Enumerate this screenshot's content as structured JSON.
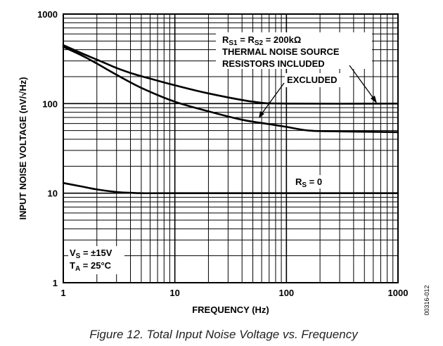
{
  "chart_data": {
    "type": "line",
    "caption": "Figure 12. Total Input Noise Voltage vs. Frequency",
    "figure_id": "00316-012",
    "xlabel": "FREQUENCY (Hz)",
    "ylabel": "INPUT NOISE VOLTAGE (nV/√Hz)",
    "x_scale": "log",
    "y_scale": "log",
    "xlim": [
      1,
      1000
    ],
    "ylim": [
      1,
      1000
    ],
    "grid": true,
    "x_ticks": [
      "1",
      "10",
      "100",
      "1000"
    ],
    "y_ticks": [
      "1",
      "10",
      "100",
      "1000"
    ],
    "series": [
      {
        "label": "THERMAL NOISE SOURCE RESISTORS INCLUDED",
        "x": [
          1,
          1.5,
          2,
          3,
          4,
          6,
          10,
          20,
          50,
          100,
          1000
        ],
        "y": [
          450,
          360,
          310,
          250,
          220,
          190,
          160,
          130,
          105,
          100,
          100
        ]
      },
      {
        "label": "EXCLUDED",
        "x": [
          1,
          1.5,
          2,
          3,
          5,
          10,
          20,
          40,
          70,
          100,
          160,
          300,
          1000
        ],
        "y": [
          430,
          340,
          280,
          210,
          150,
          105,
          82,
          66,
          59,
          55,
          50,
          49,
          48
        ]
      },
      {
        "label": "RS = 0",
        "x": [
          1,
          1.5,
          2,
          3,
          4,
          5,
          10,
          100,
          1000
        ],
        "y": [
          13,
          11.8,
          11,
          10.3,
          10.1,
          10,
          10,
          10,
          10
        ]
      }
    ],
    "annotations": {
      "rs_label_pre": "R",
      "rs1_sub": "S1",
      "rs_eq": " = R",
      "rs2_sub": "S2",
      "rs_value": " = 200kΩ",
      "included_line1": "THERMAL NOISE SOURCE",
      "included_line2": "RESISTORS INCLUDED",
      "excluded": "EXCLUDED",
      "rs0_pre": "R",
      "rs0_sub": "S",
      "rs0_value": " = 0",
      "vs_pre": "V",
      "vs_sub": "S",
      "vs_value": " = ±15V",
      "ta_pre": "T",
      "ta_sub": "A",
      "ta_value": " = 25°C"
    }
  }
}
